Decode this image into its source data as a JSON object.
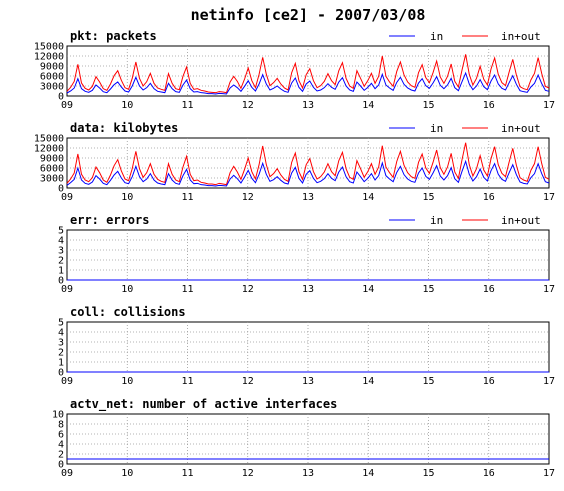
{
  "page_title": "netinfo [ce2] - 2007/03/08",
  "chart_data": [
    {
      "type": "line",
      "title": "pkt: packets",
      "x_ticks": [
        "09",
        "10",
        "11",
        "12",
        "13",
        "14",
        "15",
        "16",
        "17"
      ],
      "y_ticks": [
        "0",
        "3000",
        "6000",
        "9000",
        "12000",
        "15000"
      ],
      "ylim": [
        0,
        15000
      ],
      "grid": true,
      "legend_position": "top-right",
      "series": [
        {
          "name": "in",
          "color": "#0000ff",
          "values": [
            900,
            1500,
            2400,
            5200,
            2200,
            1400,
            1100,
            1700,
            3300,
            2400,
            1300,
            1000,
            2100,
            3400,
            4200,
            2700,
            1500,
            1200,
            3000,
            5600,
            3000,
            1800,
            2500,
            3800,
            2200,
            1400,
            1200,
            1000,
            3800,
            2200,
            1300,
            1100,
            3300,
            4800,
            2200,
            1200,
            1300,
            1000,
            900,
            700,
            700,
            600,
            800,
            700,
            600,
            2400,
            3300,
            2500,
            1400,
            2900,
            4600,
            2600,
            1500,
            3600,
            6400,
            3600,
            1800,
            2300,
            3000,
            2100,
            1400,
            1100,
            3900,
            5400,
            2600,
            1400,
            3600,
            4500,
            2600,
            1500,
            1800,
            2500,
            3700,
            2600,
            2000,
            4200,
            5500,
            3000,
            1800,
            1400,
            4200,
            3000,
            1700,
            2600,
            3800,
            2200,
            3300,
            6500,
            3300,
            2400,
            1700,
            4100,
            5600,
            3500,
            2400,
            1800,
            1500,
            3900,
            5200,
            3100,
            2300,
            3900,
            5800,
            3200,
            2200,
            3300,
            5300,
            2500,
            1600,
            4300,
            6900,
            3600,
            1900,
            3000,
            4900,
            2800,
            1900,
            4500,
            6300,
            3600,
            2300,
            1800,
            4000,
            6100,
            3500,
            1600,
            1300,
            1100,
            2700,
            3800,
            6300,
            3700,
            1700,
            1400
          ]
        },
        {
          "name": "in+out",
          "color": "#ff0000",
          "values": [
            1400,
            2600,
            4400,
            9500,
            3900,
            2300,
            1800,
            2900,
            5800,
            4200,
            2200,
            1700,
            3600,
            6100,
            7600,
            4700,
            2500,
            2000,
            5300,
            10200,
            5300,
            3000,
            4300,
            6800,
            3800,
            2400,
            2000,
            1700,
            6700,
            3800,
            2200,
            1900,
            5900,
            8700,
            3800,
            2000,
            2200,
            1700,
            1500,
            1200,
            1100,
            1000,
            1300,
            1200,
            1000,
            4200,
            5900,
            4400,
            2300,
            5100,
            8400,
            4600,
            2500,
            6500,
            11600,
            6500,
            3100,
            4000,
            5300,
            3600,
            2400,
            1800,
            7000,
            9800,
            4600,
            2400,
            6400,
            8200,
            4600,
            2500,
            3100,
            4400,
            6700,
            4600,
            3400,
            7600,
            10000,
            5300,
            3000,
            2300,
            7600,
            5300,
            2900,
            4600,
            6800,
            3800,
            5900,
            12000,
            5900,
            4200,
            2900,
            7400,
            10200,
            6300,
            4200,
            3100,
            2600,
            7000,
            9400,
            5500,
            4000,
            7000,
            10500,
            5700,
            3800,
            5900,
            9600,
            4400,
            2700,
            7800,
            12500,
            6500,
            3300,
            5300,
            8900,
            5000,
            3300,
            8100,
            11400,
            6500,
            4000,
            3100,
            7200,
            11000,
            6300,
            2800,
            2200,
            1900,
            4800,
            6800,
            11500,
            6700,
            2900,
            2400
          ]
        }
      ]
    },
    {
      "type": "line",
      "title": "data: kilobytes",
      "x_ticks": [
        "09",
        "10",
        "11",
        "12",
        "13",
        "14",
        "15",
        "16",
        "17"
      ],
      "y_ticks": [
        "0",
        "3000",
        "6000",
        "9000",
        "12000",
        "15000"
      ],
      "ylim": [
        0,
        15000
      ],
      "grid": true,
      "legend_position": "top-right",
      "series": [
        {
          "name": "in",
          "color": "#0000ff",
          "values": [
            800,
            1600,
            2600,
            6000,
            2400,
            1400,
            1100,
            1800,
            3700,
            2700,
            1400,
            1000,
            2300,
            3900,
            5000,
            3000,
            1600,
            1300,
            3400,
            6500,
            3400,
            1900,
            2700,
            4300,
            2400,
            1500,
            1200,
            1000,
            4300,
            2400,
            1400,
            1100,
            3700,
            5600,
            2400,
            1300,
            1400,
            1000,
            900,
            700,
            700,
            600,
            800,
            700,
            600,
            2700,
            3800,
            2800,
            1500,
            3300,
            5300,
            2900,
            1600,
            4100,
            7400,
            4100,
            2000,
            2500,
            3400,
            2300,
            1500,
            1200,
            4500,
            6200,
            2900,
            1500,
            4100,
            5200,
            2900,
            1600,
            2000,
            2800,
            4300,
            2900,
            2200,
            4800,
            6300,
            3400,
            1900,
            1500,
            4800,
            3400,
            1900,
            2900,
            4300,
            2400,
            3700,
            7500,
            3700,
            2700,
            1900,
            4700,
            6500,
            4000,
            2700,
            2000,
            1700,
            4500,
            6000,
            3500,
            2600,
            4500,
            6700,
            3600,
            2400,
            3700,
            6100,
            2800,
            1700,
            5000,
            8000,
            4100,
            2100,
            3400,
            5700,
            3200,
            2100,
            5200,
            7300,
            4100,
            2600,
            2000,
            4600,
            7000,
            4000,
            1800,
            1400,
            1200,
            3100,
            4300,
            7300,
            4300,
            1900,
            1500
          ]
        },
        {
          "name": "in+out",
          "color": "#ff0000",
          "values": [
            1400,
            2700,
            4500,
            10200,
            4100,
            2400,
            1900,
            3100,
            6300,
            4600,
            2400,
            1700,
            3900,
            6700,
            8500,
            5100,
            2700,
            2200,
            5800,
            11000,
            5800,
            3200,
            4600,
            7300,
            4100,
            2600,
            2000,
            1700,
            7300,
            4100,
            2400,
            1900,
            6300,
            9500,
            4100,
            2200,
            2400,
            1700,
            1500,
            1200,
            1200,
            1000,
            1400,
            1200,
            1000,
            4600,
            6500,
            4800,
            2600,
            5600,
            9000,
            4900,
            2700,
            7000,
            12600,
            7000,
            3400,
            4300,
            5800,
            3900,
            2600,
            2000,
            7700,
            10500,
            4900,
            2600,
            7000,
            8800,
            4900,
            2700,
            3400,
            4800,
            7300,
            4900,
            3700,
            8200,
            10700,
            5800,
            3200,
            2600,
            8200,
            5800,
            3200,
            4900,
            7300,
            4100,
            6300,
            12700,
            6300,
            4600,
            3200,
            8000,
            11000,
            6800,
            4600,
            3400,
            2900,
            7700,
            10200,
            6000,
            4400,
            7700,
            11400,
            6100,
            4100,
            6300,
            10400,
            4800,
            2900,
            8500,
            13600,
            7000,
            3600,
            5800,
            9700,
            5400,
            3600,
            8800,
            12400,
            7000,
            4400,
            3400,
            7800,
            11900,
            6800,
            3100,
            2400,
            2000,
            5300,
            7300,
            12400,
            7300,
            3200,
            2600
          ]
        }
      ]
    },
    {
      "type": "line",
      "title": "err: errors",
      "x_ticks": [
        "09",
        "10",
        "11",
        "12",
        "13",
        "14",
        "15",
        "16",
        "17"
      ],
      "y_ticks": [
        "0",
        "1",
        "2",
        "3",
        "4",
        "5"
      ],
      "ylim": [
        0,
        5
      ],
      "grid": true,
      "legend_position": "top-right",
      "series": [
        {
          "name": "in",
          "color": "#0000ff",
          "values": [
            0,
            0
          ]
        },
        {
          "name": "in+out",
          "color": "#ff0000",
          "values": [
            0,
            0
          ]
        }
      ]
    },
    {
      "type": "line",
      "title": "coll: collisions",
      "x_ticks": [
        "09",
        "10",
        "11",
        "12",
        "13",
        "14",
        "15",
        "16",
        "17"
      ],
      "y_ticks": [
        "0",
        "1",
        "2",
        "3",
        "4",
        "5"
      ],
      "ylim": [
        0,
        5
      ],
      "grid": true,
      "series": [
        {
          "color": "#0000ff",
          "values": [
            0,
            0
          ]
        }
      ]
    },
    {
      "type": "line",
      "title": "actv_net: number of active interfaces",
      "x_ticks": [
        "09",
        "10",
        "11",
        "12",
        "13",
        "14",
        "15",
        "16",
        "17"
      ],
      "y_ticks": [
        "0",
        "2",
        "4",
        "6",
        "8",
        "10"
      ],
      "ylim": [
        0,
        10
      ],
      "grid": true,
      "series": [
        {
          "color": "#0000ff",
          "values": [
            1,
            1
          ]
        }
      ]
    }
  ]
}
